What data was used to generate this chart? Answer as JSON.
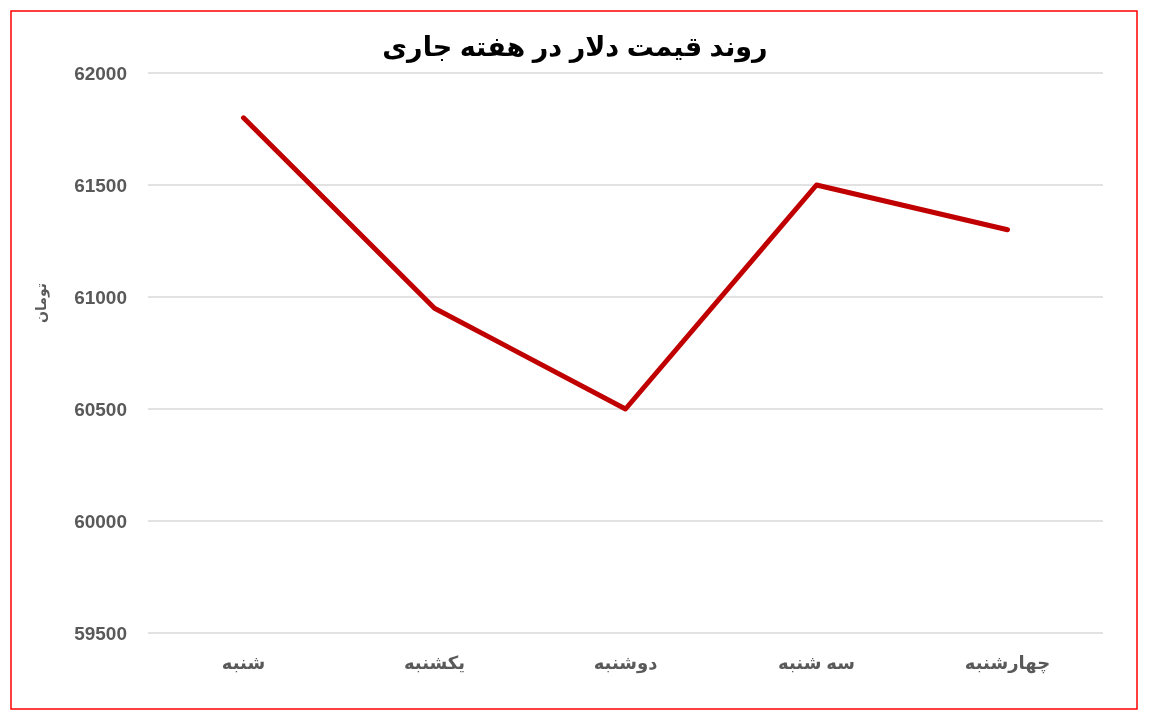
{
  "chart_data": {
    "type": "line",
    "title": "روند قیمت دلار در هفته جاری",
    "ylabel": "تومان",
    "categories": [
      "شنبه",
      "یکشنبه",
      "دوشنبه",
      "سه شنبه",
      "چهارشنبه"
    ],
    "series": [
      {
        "color": "#c00000",
        "values": [
          61800,
          60950,
          60500,
          61500,
          61300
        ]
      }
    ],
    "ylim": [
      59500,
      62000
    ],
    "yticks": [
      59500,
      60000,
      60500,
      61000,
      61500,
      62000
    ],
    "grid": "y",
    "marker": "none",
    "line_style": "solid"
  }
}
